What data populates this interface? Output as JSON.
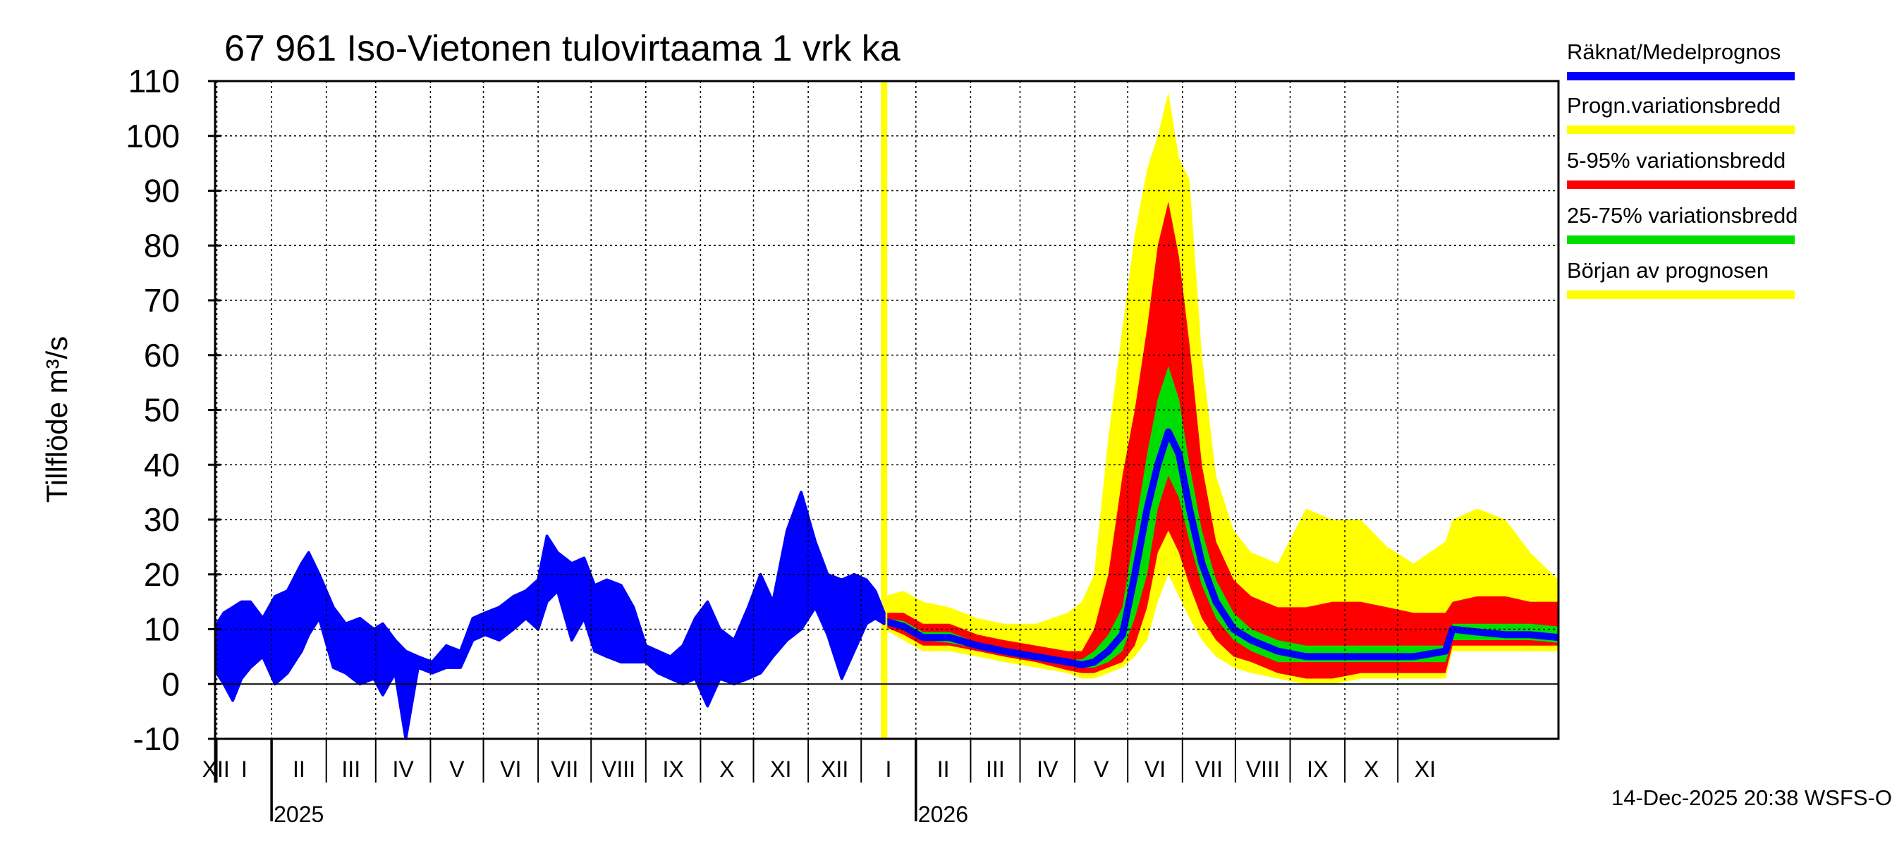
{
  "chart_data": {
    "type": "area",
    "title": "67 961 Iso-Vietonen tulovirtaama 1 vrk ka",
    "ylabel": "Tillflöde m³/s",
    "xlabel": "",
    "ylim": [
      -10,
      110
    ],
    "yticks": [
      -10,
      0,
      10,
      20,
      30,
      40,
      50,
      60,
      70,
      80,
      90,
      100,
      110
    ],
    "grid": true,
    "legend_position": "right",
    "months": [
      "XII",
      "I",
      "II",
      "III",
      "IV",
      "V",
      "VI",
      "VII",
      "VIII",
      "IX",
      "X",
      "XI",
      "XII",
      "I",
      "II",
      "III",
      "IV",
      "V",
      "VI",
      "VII",
      "VIII",
      "IX",
      "X",
      "XI"
    ],
    "years": [
      "2025",
      "2026"
    ],
    "x_start": "2024-11-30",
    "x_end": "2026-12-31",
    "forecast_start": "2025-12-14",
    "footer": "14-Dec-2025 20:38 WSFS-O",
    "colors": {
      "observed": "#0000ff",
      "prognosis_range": "#ffff00",
      "p5_95": "#ff0000",
      "p25_75": "#00dd00",
      "forecast_start": "#ffff00",
      "grid": "#000000"
    },
    "legend": [
      {
        "label": "Räknat/Medelprognos",
        "color": "#0000ff"
      },
      {
        "label": "Progn.variationsbredd",
        "color": "#ffff00"
      },
      {
        "label": "5-95% variationsbredd",
        "color": "#ff0000"
      },
      {
        "label": "25-75% variationsbredd",
        "color": "#00dd00"
      },
      {
        "label": "Början av prognosen",
        "color": "#ffff00"
      }
    ],
    "observed": [
      {
        "x": "2024-12-01",
        "low": 2,
        "high": 11
      },
      {
        "x": "2024-12-05",
        "low": 0,
        "high": 13
      },
      {
        "x": "2024-12-10",
        "low": -3,
        "high": 14
      },
      {
        "x": "2024-12-15",
        "low": 1,
        "high": 15
      },
      {
        "x": "2024-12-20",
        "low": 3,
        "high": 15
      },
      {
        "x": "2024-12-27",
        "low": 5,
        "high": 12
      },
      {
        "x": "2025-01-03",
        "low": 0,
        "high": 16
      },
      {
        "x": "2025-01-10",
        "low": 2,
        "high": 17
      },
      {
        "x": "2025-01-18",
        "low": 6,
        "high": 22
      },
      {
        "x": "2025-01-22",
        "low": 9,
        "high": 24
      },
      {
        "x": "2025-01-28",
        "low": 12,
        "high": 20
      },
      {
        "x": "2025-02-05",
        "low": 3,
        "high": 14
      },
      {
        "x": "2025-02-12",
        "low": 2,
        "high": 11
      },
      {
        "x": "2025-02-20",
        "low": 0,
        "high": 12
      },
      {
        "x": "2025-02-28",
        "low": 1,
        "high": 10
      },
      {
        "x": "2025-03-05",
        "low": -2,
        "high": 11
      },
      {
        "x": "2025-03-12",
        "low": 2,
        "high": 8
      },
      {
        "x": "2025-03-18",
        "low": -10,
        "high": 6
      },
      {
        "x": "2025-03-25",
        "low": 3,
        "high": 5
      },
      {
        "x": "2025-04-02",
        "low": 2,
        "high": 4
      },
      {
        "x": "2025-04-10",
        "low": 3,
        "high": 7
      },
      {
        "x": "2025-04-18",
        "low": 3,
        "high": 6
      },
      {
        "x": "2025-04-25",
        "low": 8,
        "high": 12
      },
      {
        "x": "2025-05-02",
        "low": 9,
        "high": 13
      },
      {
        "x": "2025-05-10",
        "low": 8,
        "high": 14
      },
      {
        "x": "2025-05-18",
        "low": 10,
        "high": 16
      },
      {
        "x": "2025-05-25",
        "low": 12,
        "high": 17
      },
      {
        "x": "2025-06-01",
        "low": 10,
        "high": 19
      },
      {
        "x": "2025-06-06",
        "low": 15,
        "high": 27
      },
      {
        "x": "2025-06-12",
        "low": 17,
        "high": 24
      },
      {
        "x": "2025-06-20",
        "low": 8,
        "high": 22
      },
      {
        "x": "2025-06-27",
        "low": 12,
        "high": 23
      },
      {
        "x": "2025-07-03",
        "low": 6,
        "high": 18
      },
      {
        "x": "2025-07-10",
        "low": 5,
        "high": 19
      },
      {
        "x": "2025-07-18",
        "low": 4,
        "high": 18
      },
      {
        "x": "2025-07-25",
        "low": 4,
        "high": 14
      },
      {
        "x": "2025-08-01",
        "low": 4,
        "high": 7
      },
      {
        "x": "2025-08-08",
        "low": 2,
        "high": 6
      },
      {
        "x": "2025-08-15",
        "low": 1,
        "high": 5
      },
      {
        "x": "2025-08-22",
        "low": 0,
        "high": 7
      },
      {
        "x": "2025-08-29",
        "low": 1,
        "high": 12
      },
      {
        "x": "2025-09-05",
        "low": -4,
        "high": 15
      },
      {
        "x": "2025-09-12",
        "low": 1,
        "high": 10
      },
      {
        "x": "2025-09-20",
        "low": 0,
        "high": 8
      },
      {
        "x": "2025-09-28",
        "low": 1,
        "high": 14
      },
      {
        "x": "2025-10-05",
        "low": 2,
        "high": 20
      },
      {
        "x": "2025-10-12",
        "low": 5,
        "high": 15
      },
      {
        "x": "2025-10-20",
        "low": 8,
        "high": 28
      },
      {
        "x": "2025-10-28",
        "low": 10,
        "high": 35
      },
      {
        "x": "2025-11-05",
        "low": 14,
        "high": 26
      },
      {
        "x": "2025-11-12",
        "low": 9,
        "high": 20
      },
      {
        "x": "2025-11-20",
        "low": 1,
        "high": 19
      },
      {
        "x": "2025-11-27",
        "low": 6,
        "high": 20
      },
      {
        "x": "2025-12-04",
        "low": 11,
        "high": 19
      },
      {
        "x": "2025-12-09",
        "low": 12,
        "high": 17
      },
      {
        "x": "2025-12-14",
        "low": 11,
        "high": 13
      }
    ],
    "forecast": [
      {
        "x": "2025-12-14",
        "min": 10,
        "p5": 10.5,
        "p25": 11,
        "median": 11.5,
        "p75": 12,
        "p95": 13,
        "max": 16
      },
      {
        "x": "2025-12-25",
        "min": 8,
        "p5": 9,
        "p25": 10,
        "median": 10.5,
        "p75": 11.5,
        "p95": 13,
        "max": 17
      },
      {
        "x": "2026-01-05",
        "min": 6,
        "p5": 7,
        "p25": 8,
        "median": 8.5,
        "p75": 9.5,
        "p95": 11,
        "max": 15
      },
      {
        "x": "2026-01-20",
        "min": 6,
        "p5": 7,
        "p25": 7.5,
        "median": 8.5,
        "p75": 9.5,
        "p95": 11,
        "max": 14
      },
      {
        "x": "2026-02-05",
        "min": 5,
        "p5": 6,
        "p25": 6.5,
        "median": 7,
        "p75": 7.5,
        "p95": 9,
        "max": 12
      },
      {
        "x": "2026-02-20",
        "min": 4,
        "p5": 5,
        "p25": 5.5,
        "median": 6,
        "p75": 6.5,
        "p95": 8,
        "max": 11
      },
      {
        "x": "2026-03-10",
        "min": 3,
        "p5": 4,
        "p25": 4.5,
        "median": 5,
        "p75": 5.5,
        "p95": 7,
        "max": 11
      },
      {
        "x": "2026-03-28",
        "min": 2,
        "p5": 2.5,
        "p25": 3.5,
        "median": 4,
        "p75": 4.5,
        "p95": 6,
        "max": 13
      },
      {
        "x": "2026-04-05",
        "min": 1,
        "p5": 2,
        "p25": 3,
        "median": 3.5,
        "p75": 4.5,
        "p95": 6,
        "max": 15
      },
      {
        "x": "2026-04-12",
        "min": 1,
        "p5": 2,
        "p25": 3,
        "median": 4,
        "p75": 6,
        "p95": 10,
        "max": 20
      },
      {
        "x": "2026-04-20",
        "min": 2,
        "p5": 3,
        "p25": 4,
        "median": 6,
        "p75": 9,
        "p95": 20,
        "max": 45
      },
      {
        "x": "2026-04-28",
        "min": 3,
        "p5": 4,
        "p25": 6,
        "median": 9,
        "p75": 14,
        "p95": 38,
        "max": 65
      },
      {
        "x": "2026-05-05",
        "min": 5,
        "p5": 7,
        "p25": 12,
        "median": 20,
        "p75": 28,
        "p95": 50,
        "max": 82
      },
      {
        "x": "2026-05-12",
        "min": 8,
        "p5": 14,
        "p25": 20,
        "median": 32,
        "p75": 42,
        "p95": 65,
        "max": 94
      },
      {
        "x": "2026-05-18",
        "min": 15,
        "p5": 24,
        "p25": 32,
        "median": 40,
        "p75": 52,
        "p95": 80,
        "max": 100
      },
      {
        "x": "2026-05-24",
        "min": 20,
        "p5": 28,
        "p25": 38,
        "median": 46,
        "p75": 58,
        "p95": 88,
        "max": 108
      },
      {
        "x": "2026-05-30",
        "min": 16,
        "p5": 24,
        "p25": 34,
        "median": 42,
        "p75": 52,
        "p95": 78,
        "max": 96
      },
      {
        "x": "2026-06-05",
        "min": 12,
        "p5": 18,
        "p25": 26,
        "median": 32,
        "p75": 40,
        "p95": 62,
        "max": 92
      },
      {
        "x": "2026-06-12",
        "min": 8,
        "p5": 12,
        "p25": 18,
        "median": 22,
        "p75": 28,
        "p95": 40,
        "max": 60
      },
      {
        "x": "2026-06-20",
        "min": 5,
        "p5": 8,
        "p25": 12,
        "median": 15,
        "p75": 19,
        "p95": 26,
        "max": 38
      },
      {
        "x": "2026-06-30",
        "min": 3,
        "p5": 5,
        "p25": 8,
        "median": 10,
        "p75": 13,
        "p95": 19,
        "max": 28
      },
      {
        "x": "2026-07-10",
        "min": 2,
        "p5": 4,
        "p25": 6,
        "median": 8,
        "p75": 10,
        "p95": 16,
        "max": 24
      },
      {
        "x": "2026-07-25",
        "min": 1,
        "p5": 2,
        "p25": 4,
        "median": 6,
        "p75": 8,
        "p95": 14,
        "max": 22
      },
      {
        "x": "2026-08-10",
        "min": 0,
        "p5": 1,
        "p25": 4,
        "median": 5,
        "p75": 7,
        "p95": 14,
        "max": 32
      },
      {
        "x": "2026-08-25",
        "min": 0,
        "p5": 1,
        "p25": 4,
        "median": 5,
        "p75": 7,
        "p95": 15,
        "max": 30
      },
      {
        "x": "2026-09-10",
        "min": 1,
        "p5": 2,
        "p25": 4,
        "median": 5,
        "p75": 7,
        "p95": 15,
        "max": 30
      },
      {
        "x": "2026-09-25",
        "min": 1,
        "p5": 2,
        "p25": 4,
        "median": 5,
        "p75": 7,
        "p95": 14,
        "max": 25
      },
      {
        "x": "2026-10-10",
        "min": 1,
        "p5": 2,
        "p25": 4,
        "median": 5,
        "p75": 7,
        "p95": 13,
        "max": 22
      },
      {
        "x": "2026-10-28",
        "min": 1,
        "p5": 2,
        "p25": 4,
        "median": 6,
        "p75": 7,
        "p95": 13,
        "max": 26
      },
      {
        "x": "2026-11-01",
        "min": 6,
        "p5": 7,
        "p25": 8,
        "median": 10,
        "p75": 11,
        "p95": 15,
        "max": 30
      },
      {
        "x": "2026-11-15",
        "min": 6,
        "p5": 7,
        "p25": 8,
        "median": 9.5,
        "p75": 11,
        "p95": 16,
        "max": 32
      },
      {
        "x": "2026-12-01",
        "min": 6,
        "p5": 7,
        "p25": 8,
        "median": 9,
        "p75": 11,
        "p95": 16,
        "max": 30
      },
      {
        "x": "2026-12-15",
        "min": 6,
        "p5": 7,
        "p25": 8,
        "median": 9,
        "p75": 11,
        "p95": 15,
        "max": 24
      },
      {
        "x": "2026-12-31",
        "min": 6,
        "p5": 7,
        "p25": 7.5,
        "median": 8.5,
        "p75": 10.5,
        "p95": 15,
        "max": 19
      }
    ]
  }
}
